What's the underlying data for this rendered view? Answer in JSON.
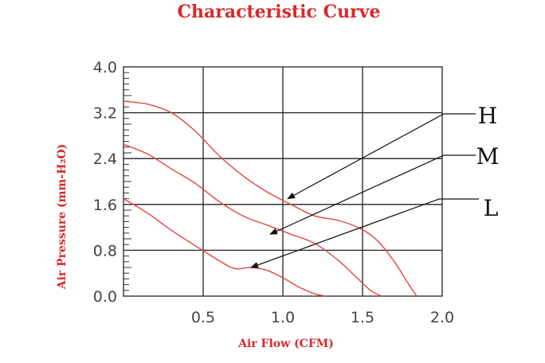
{
  "chart_data": {
    "type": "line",
    "title": "Characteristic Curve",
    "xlabel": "Air Flow (CFM)",
    "ylabel": "Air Pressure (mm-H₂O)",
    "xlim": [
      0,
      2.0
    ],
    "ylim": [
      0,
      4.0
    ],
    "x_ticks": [
      "0.5",
      "1.0",
      "1.5",
      "2.0"
    ],
    "y_ticks": [
      "0.0",
      "0.8",
      "1.6",
      "2.4",
      "3.2",
      "4.0"
    ],
    "x_tick_values": [
      0.5,
      1.0,
      1.5,
      2.0
    ],
    "y_tick_values": [
      0,
      0.8,
      1.6,
      2.4,
      3.2,
      4.0
    ],
    "grid": true,
    "colors": {
      "curve": "#e0473e",
      "title": "#d9292a",
      "grid": "#222222"
    },
    "series": [
      {
        "name": "H",
        "x": [
          0,
          0.15,
          0.3,
          0.45,
          0.6,
          0.75,
          0.9,
          1.05,
          1.2,
          1.35,
          1.5,
          1.6,
          1.7,
          1.78,
          1.84
        ],
        "y": [
          3.4,
          3.35,
          3.2,
          2.88,
          2.45,
          2.1,
          1.82,
          1.6,
          1.4,
          1.32,
          1.16,
          0.95,
          0.6,
          0.25,
          0.0
        ]
      },
      {
        "name": "M",
        "x": [
          0,
          0.15,
          0.3,
          0.45,
          0.6,
          0.75,
          0.9,
          1.05,
          1.2,
          1.35,
          1.45,
          1.55,
          1.62
        ],
        "y": [
          2.65,
          2.48,
          2.22,
          1.97,
          1.65,
          1.4,
          1.24,
          1.08,
          0.92,
          0.62,
          0.36,
          0.1,
          0.0
        ]
      },
      {
        "name": "L",
        "x": [
          0,
          0.15,
          0.3,
          0.45,
          0.6,
          0.7,
          0.8,
          0.9,
          1.0,
          1.1,
          1.2,
          1.27
        ],
        "y": [
          1.7,
          1.45,
          1.15,
          0.88,
          0.62,
          0.48,
          0.5,
          0.45,
          0.32,
          0.16,
          0.04,
          0.0
        ]
      }
    ],
    "annotations": [
      {
        "label": "H",
        "points_to": [
          1.03,
          1.7
        ]
      },
      {
        "label": "M",
        "points_to": [
          0.92,
          1.08
        ]
      },
      {
        "label": "L",
        "points_to": [
          0.8,
          0.5
        ]
      }
    ]
  }
}
